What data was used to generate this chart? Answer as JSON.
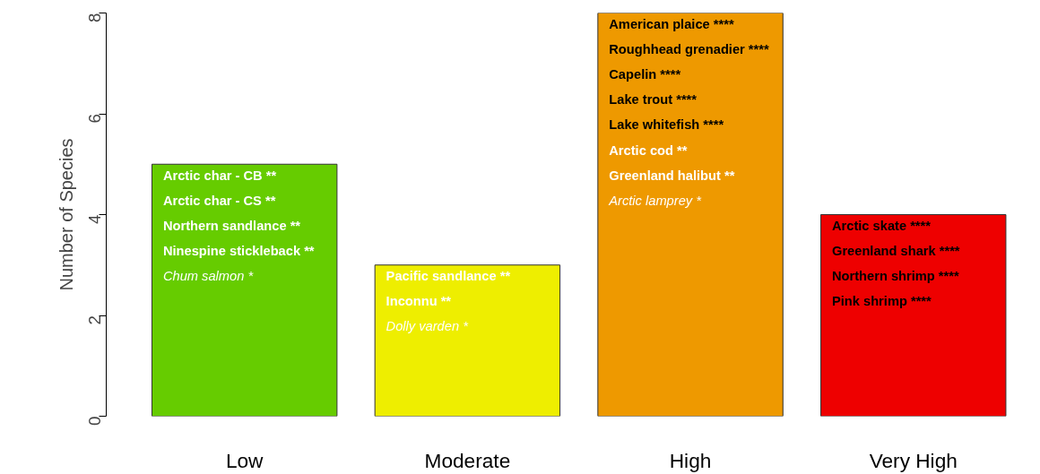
{
  "chart_data": {
    "type": "bar",
    "ylabel": "Number of Species",
    "categories": [
      "Low",
      "Moderate",
      "High",
      "Very High"
    ],
    "values": [
      5,
      3,
      8,
      4
    ],
    "colors": [
      "#66cc00",
      "#eeee00",
      "#ee9900",
      "#ee0000"
    ],
    "ylim": [
      0,
      8
    ],
    "yticks": [
      0,
      2,
      4,
      6,
      8
    ],
    "grid": false,
    "annotations": [
      "Arctic char - CB **",
      "Arctic char - CS **",
      "Northern sandlance **",
      "Ninespine stickleback **",
      "Chum salmon  *",
      "Pacific sandlance  **",
      "Inconnu  **",
      "Dolly varden  *",
      "American plaice ****",
      "Roughhead grenadier ****",
      "Capelin ****",
      "Lake trout  ****",
      "Lake whitefish ****",
      "Arctic cod  **",
      "Greenland halibut  **",
      "Arctic lamprey *",
      "Arctic skate  ****",
      "Greenland shark ****",
      "Northern shrimp ****",
      "Pink shrimp  ****"
    ]
  }
}
